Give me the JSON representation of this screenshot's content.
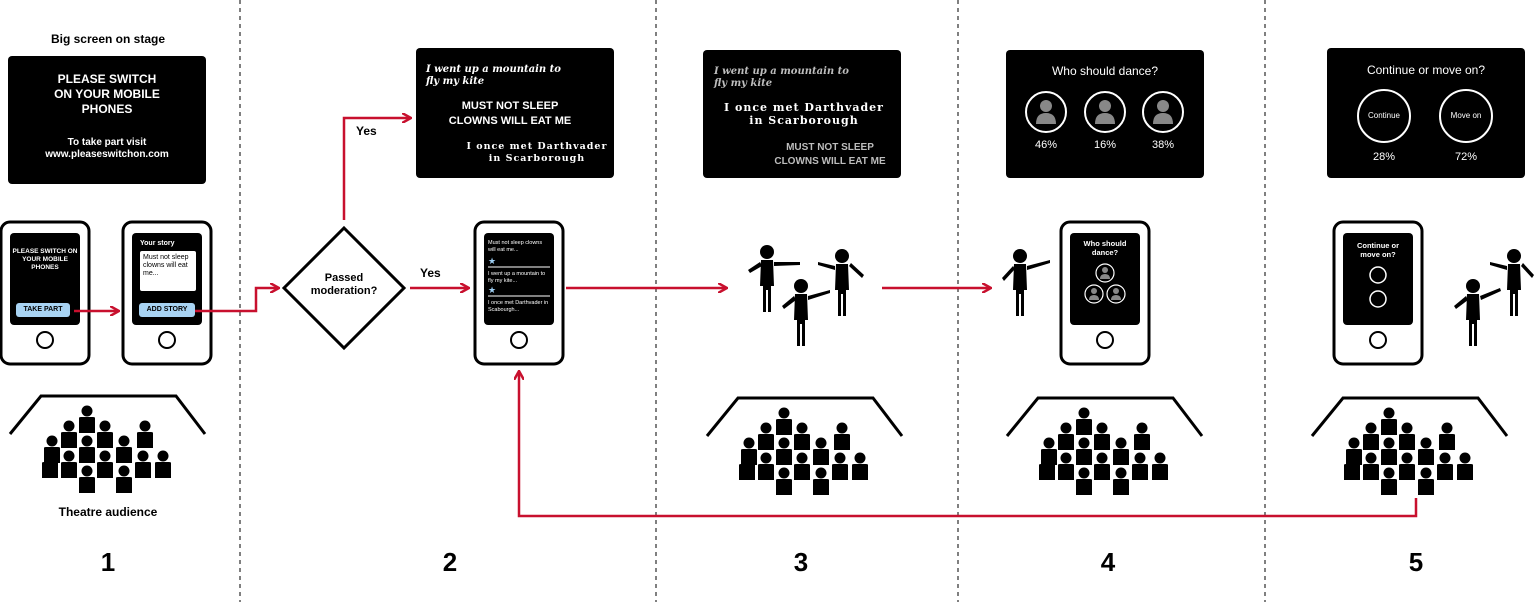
{
  "labels": {
    "big_screen": "Big screen on stage",
    "audience": "Theatre audience",
    "yes_top": "Yes",
    "yes_right": "Yes",
    "diamond": "Passed moderation?"
  },
  "screen1": {
    "line1": "PLEASE SWITCH",
    "line2": "ON YOUR MOBILE",
    "line3": "PHONES",
    "visit": "To take part visit",
    "url": "www.pleaseswitchon.com"
  },
  "phone1": {
    "text": "PLEASE SWITCH ON YOUR MOBILE PHONES",
    "button": "TAKE PART"
  },
  "phone2": {
    "title": "Your story",
    "story": "Must not sleep clowns will eat me...",
    "button": "ADD STORY"
  },
  "screen2": {
    "kite": "I went up a mountain to fly my kite",
    "sleep1": "MUST NOT SLEEP",
    "sleep2": "CLOWNS WILL EAT ME",
    "darth": "I once met Darthvader in Scarborough"
  },
  "phone3": {
    "item1": "Must not sleep clowns will eat me...",
    "item2": "I went up a mountain to fly my kite...",
    "item3": "I once met Darthvader in Scabourgh..."
  },
  "screen3": {
    "kite": "I went up a mountain to fly my kite",
    "darth": "I once met Darthvader in Scarborough",
    "sleep1": "MUST NOT SLEEP",
    "sleep2": "CLOWNS WILL EAT ME"
  },
  "screen4": {
    "title": "Who should dance?",
    "p1": "46%",
    "p2": "16%",
    "p3": "38%"
  },
  "phone4": {
    "title": "Who should dance?"
  },
  "screen5": {
    "title": "Continue or move on?",
    "opt1": "Continue",
    "opt2": "Move on",
    "p1": "28%",
    "p2": "72%"
  },
  "phone5": {
    "title": "Continue or move on?"
  },
  "steps": [
    "1",
    "2",
    "3",
    "4",
    "5"
  ],
  "colors": {
    "arrow": "#c8102e",
    "screen": "#000000",
    "button": "#a8d3f3"
  }
}
